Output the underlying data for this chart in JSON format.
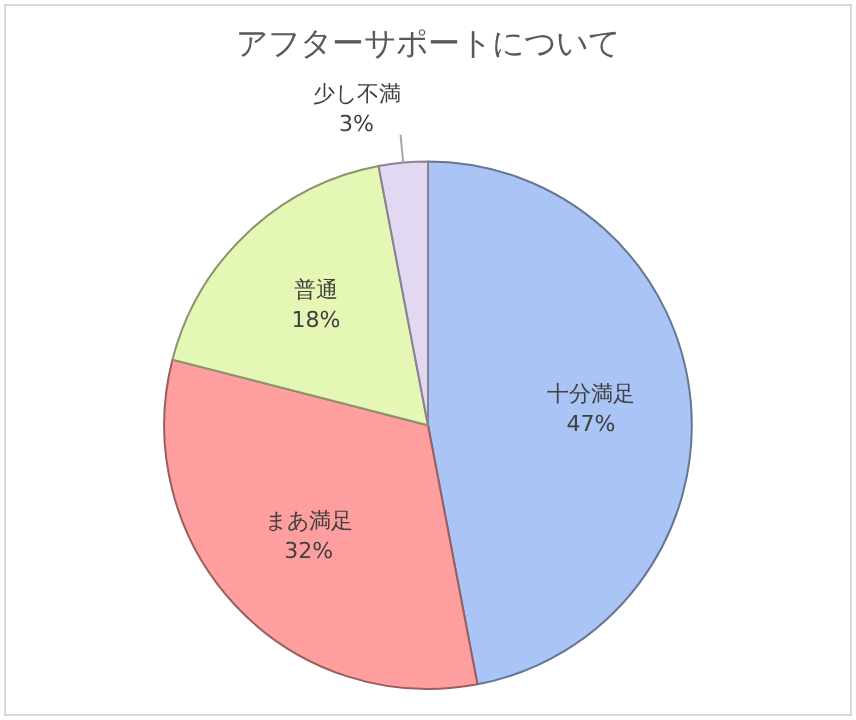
{
  "chart_data": {
    "type": "pie",
    "title": "アフターサポートについて",
    "categories": [
      "十分満足",
      "まあ満足",
      "普通",
      "少し不満"
    ],
    "values": [
      47,
      32,
      18,
      3
    ],
    "value_labels": [
      "47%",
      "32%",
      "18%",
      "3%"
    ],
    "colors": [
      "#a9c4f5",
      "#ff9e9e",
      "#e4f7b5",
      "#e3d8f1"
    ],
    "legend": false
  }
}
